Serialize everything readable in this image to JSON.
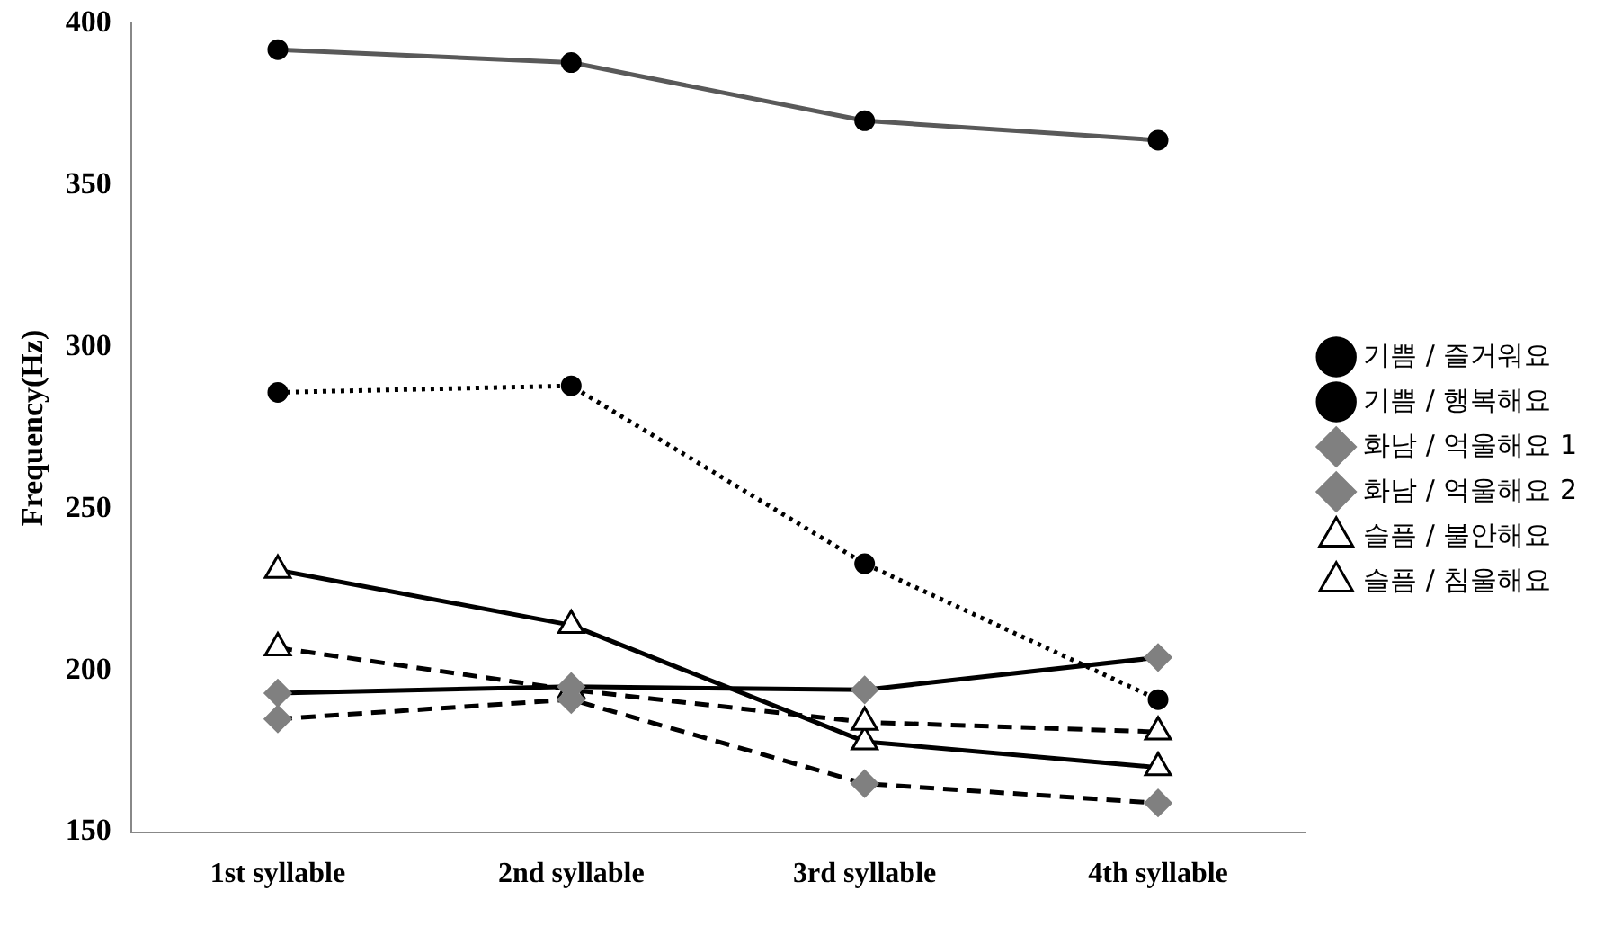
{
  "chart_data": {
    "type": "line",
    "ylabel": "Frequency(Hz)",
    "categories": [
      "1st syllable",
      "2nd syllable",
      "3rd syllable",
      "4th syllable"
    ],
    "ylim": [
      150,
      400
    ],
    "yticks": [
      150,
      200,
      250,
      300,
      350,
      400
    ],
    "grid": false,
    "legend": "right",
    "series": [
      {
        "name": "기쁨 / 즐거워요",
        "color": "#595959",
        "marker": "circle",
        "line_style": "solid",
        "values": [
          392,
          388,
          370,
          364
        ]
      },
      {
        "name": "기쁨 / 행복해요",
        "color": "#000000",
        "marker": "circle",
        "line_style": "dotted",
        "values": [
          286,
          288,
          233,
          191
        ]
      },
      {
        "name": "화남 / 억울해요 1",
        "color": "#000000",
        "marker": "diamond",
        "line_style": "solid",
        "values": [
          193,
          195,
          194,
          204
        ]
      },
      {
        "name": "화남 / 억울해요 2",
        "color": "#000000",
        "marker": "diamond",
        "line_style": "dashed",
        "values": [
          185,
          191,
          165,
          159
        ]
      },
      {
        "name": "슬픔 / 불안해요",
        "color": "#000000",
        "marker": "triangle",
        "line_style": "dashed",
        "values": [
          207,
          194,
          184,
          181
        ]
      },
      {
        "name": "슬픔 / 침울해요",
        "color": "#000000",
        "marker": "triangle",
        "line_style": "solid",
        "values": [
          231,
          214,
          178,
          170
        ]
      }
    ]
  }
}
